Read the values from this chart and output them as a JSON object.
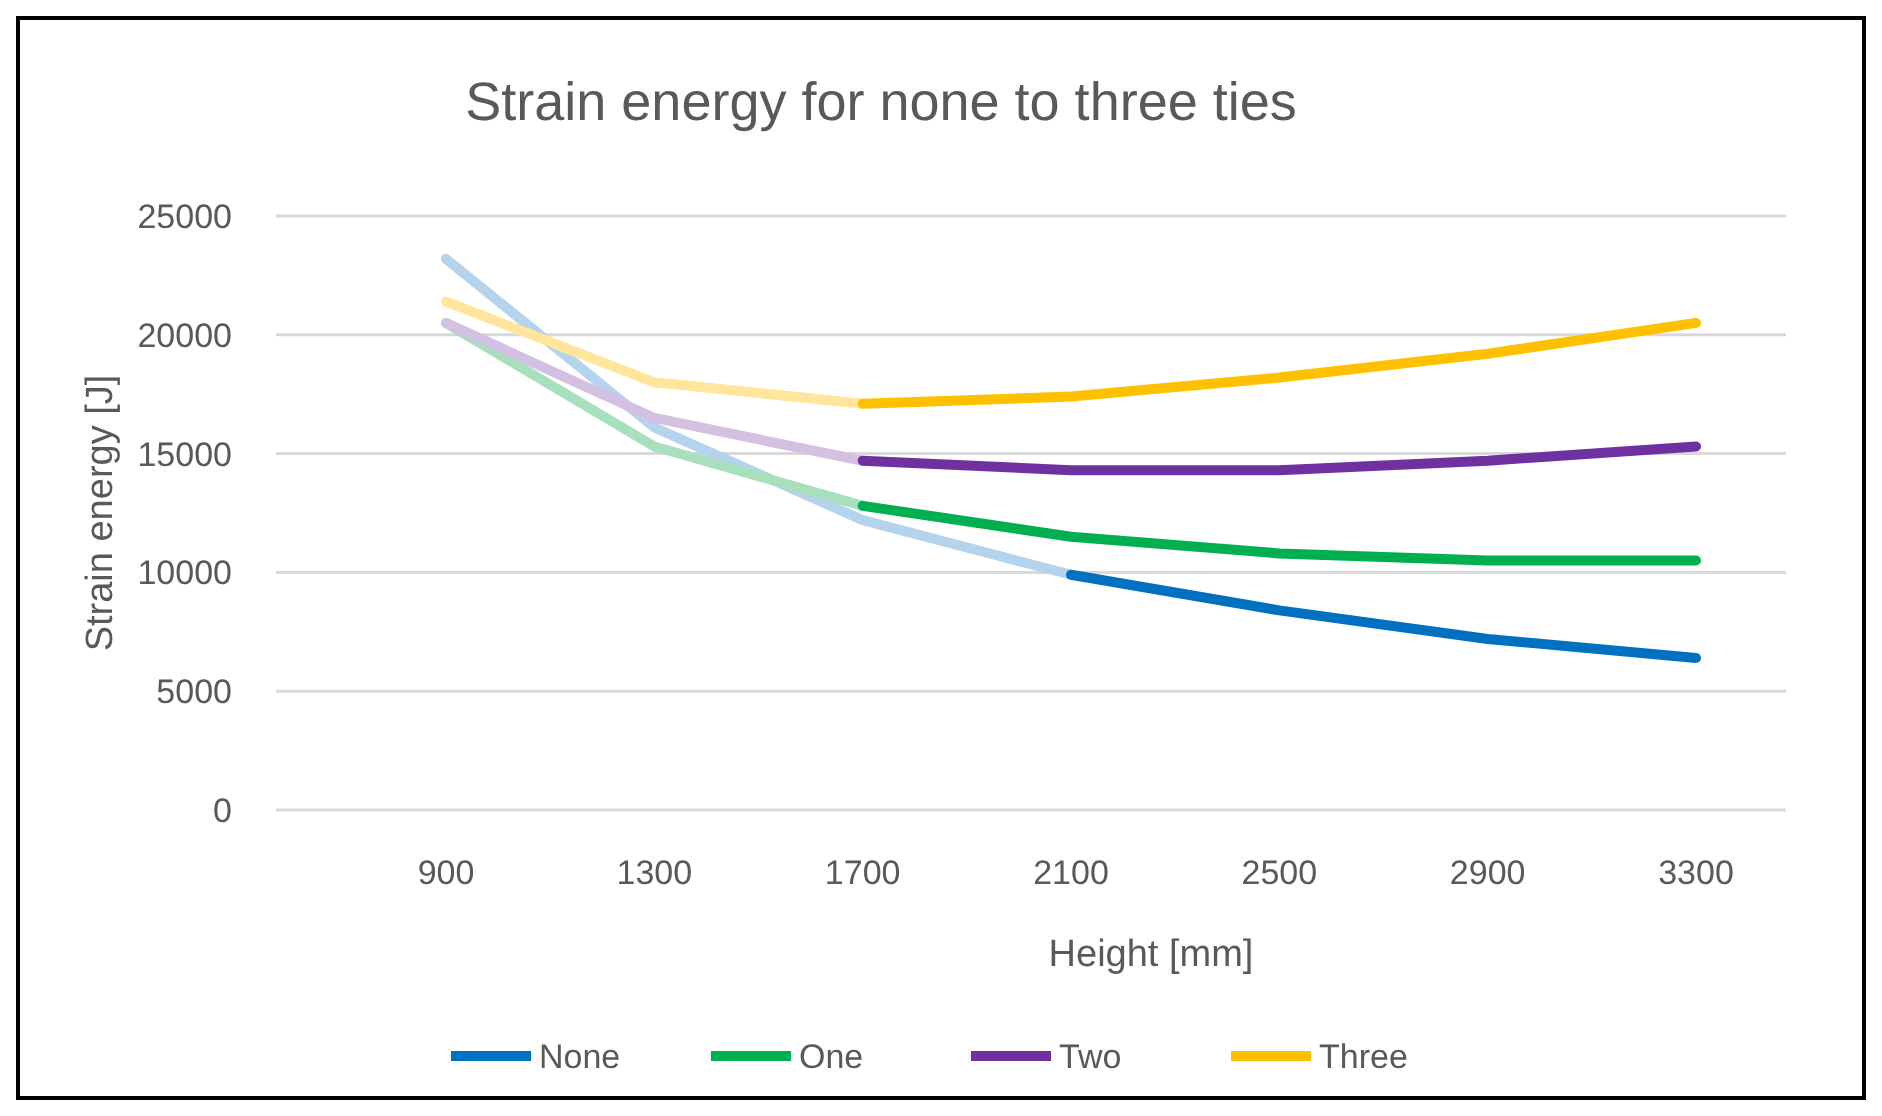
{
  "chart_data": {
    "type": "line",
    "title": "Strain energy for none to three ties",
    "xlabel": "Height [mm]",
    "ylabel": "Strain energy [J]",
    "categories": [
      "900",
      "1300",
      "1700",
      "2100",
      "2500",
      "2900",
      "3300"
    ],
    "ylim": [
      0,
      25000
    ],
    "yticks": [
      0,
      5000,
      10000,
      15000,
      20000,
      25000
    ],
    "grid": "y",
    "legend": "bottom",
    "marker": "none",
    "series": [
      {
        "color": "#b4d3ec",
        "values": [
          23200,
          16100,
          12200,
          9900,
          null,
          null,
          null
        ]
      },
      {
        "color": "#a8dfbd",
        "values": [
          20500,
          15300,
          12800,
          null,
          null,
          null,
          null
        ]
      },
      {
        "color": "#d3c0e3",
        "values": [
          20500,
          16500,
          14700,
          null,
          null,
          null,
          null
        ]
      },
      {
        "color": "#ffe69c",
        "values": [
          21400,
          18000,
          17100,
          null,
          null,
          null,
          null
        ]
      },
      {
        "name": "None",
        "color": "#0070c0",
        "values": [
          null,
          null,
          null,
          9900,
          8400,
          7200,
          6400
        ]
      },
      {
        "name": "One",
        "color": "#00b050",
        "values": [
          null,
          null,
          12800,
          11500,
          10800,
          10500,
          10500
        ]
      },
      {
        "name": "Two",
        "color": "#7030a0",
        "values": [
          null,
          null,
          14700,
          14300,
          14300,
          14700,
          15300
        ]
      },
      {
        "name": "Three",
        "color": "#ffc000",
        "values": [
          null,
          null,
          17100,
          17400,
          18200,
          19200,
          20500
        ]
      }
    ]
  }
}
